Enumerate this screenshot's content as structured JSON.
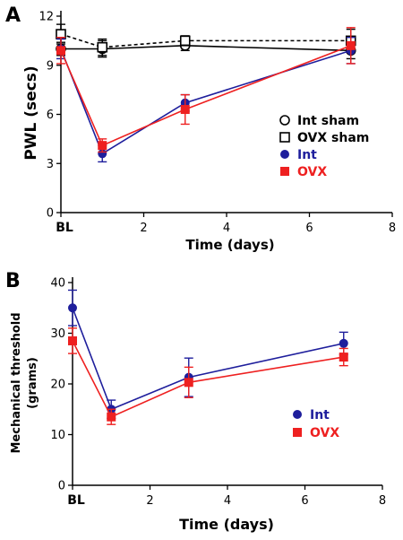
{
  "chart_data": [
    {
      "panel": "A",
      "type": "line",
      "xlabel": "Time (days)",
      "ylabel": "PWL (secs)",
      "xlim": [
        0,
        8
      ],
      "ylim": [
        0,
        12
      ],
      "x_ticks": [
        "BL",
        "2",
        "4",
        "6",
        "8"
      ],
      "y_ticks": [
        "0",
        "3",
        "6",
        "9",
        "12"
      ],
      "x": [
        0,
        1,
        3,
        7
      ],
      "legend_position": "right",
      "series": [
        {
          "name": "Int sham",
          "marker": "open-circle",
          "line": "solid",
          "color": "#000000",
          "values": [
            10.0,
            10.0,
            10.2,
            9.9
          ],
          "errors": [
            0.4,
            0.5,
            0.3,
            0.5
          ]
        },
        {
          "name": "OVX sham",
          "marker": "open-square",
          "line": "dashed",
          "color": "#000000",
          "values": [
            10.9,
            10.1,
            10.5,
            10.5
          ],
          "errors": [
            0.6,
            0.5,
            0.3,
            0.7
          ]
        },
        {
          "name": "Int",
          "marker": "filled-circle",
          "line": "solid",
          "color": "#1e1e9c",
          "values": [
            10.0,
            3.6,
            6.7,
            9.9
          ],
          "errors": [
            0.6,
            0.5,
            0.5,
            0.8
          ]
        },
        {
          "name": "OVX",
          "marker": "filled-square",
          "line": "solid",
          "color": "#ee2020",
          "values": [
            9.9,
            4.1,
            6.3,
            10.2
          ],
          "errors": [
            0.8,
            0.4,
            0.9,
            1.1
          ]
        }
      ]
    },
    {
      "panel": "B",
      "type": "line",
      "xlabel": "Time (days)",
      "ylabel_lines": [
        "Mechanical threshold",
        "(grams)"
      ],
      "xlim": [
        0,
        8
      ],
      "ylim": [
        0,
        40
      ],
      "x_ticks": [
        "BL",
        "2",
        "4",
        "6",
        "8"
      ],
      "y_ticks": [
        "0",
        "10",
        "20",
        "30",
        "40"
      ],
      "x": [
        0,
        1,
        3,
        7
      ],
      "legend_position": "right",
      "series": [
        {
          "name": "Int",
          "marker": "filled-circle",
          "line": "solid",
          "color": "#1e1e9c",
          "values": [
            35.0,
            15.0,
            21.3,
            28.0
          ],
          "errors": [
            3.5,
            1.8,
            3.8,
            2.2
          ]
        },
        {
          "name": "OVX",
          "marker": "filled-square",
          "line": "solid",
          "color": "#ee2020",
          "values": [
            28.5,
            13.5,
            20.3,
            25.3
          ],
          "errors": [
            2.5,
            1.5,
            3.0,
            1.7
          ]
        }
      ]
    }
  ]
}
